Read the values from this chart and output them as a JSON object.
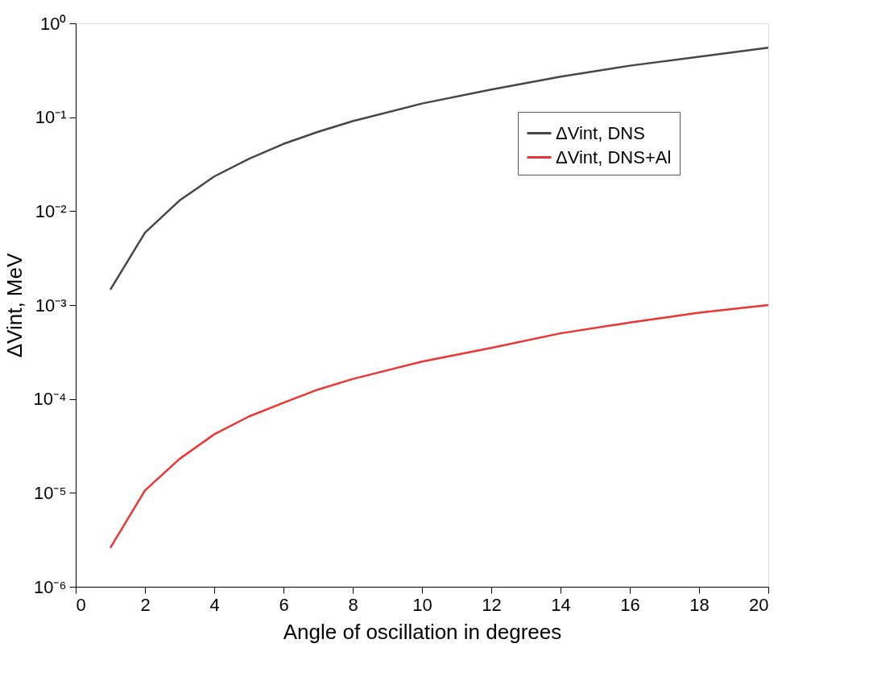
{
  "chart_data": {
    "type": "line",
    "xlabel": "Angle of oscillation in degrees",
    "ylabel": "ΔVint, MeV",
    "x": [
      1,
      2,
      3,
      4,
      5,
      6,
      7,
      8,
      10,
      12,
      14,
      16,
      18,
      20
    ],
    "series": [
      {
        "name": "ΔVint, DNS",
        "color": "#464646",
        "values": [
          0.00146,
          0.0059,
          0.013,
          0.0234,
          0.036,
          0.052,
          0.07,
          0.091,
          0.14,
          0.197,
          0.27,
          0.354,
          0.44,
          0.55
        ]
      },
      {
        "name": "ΔVint, DNS+Al",
        "color": "#ee3333",
        "values": [
          2.6e-06,
          1.06e-05,
          2.3e-05,
          4.2e-05,
          6.5e-05,
          9.1e-05,
          0.000126,
          0.000163,
          0.00025,
          0.00035,
          0.0005,
          0.00065,
          0.00083,
          0.001
        ]
      }
    ],
    "log": "y",
    "xlim": [
      0,
      20
    ],
    "xticks": [
      0,
      2,
      4,
      6,
      8,
      10,
      12,
      14,
      16,
      18,
      20
    ],
    "ylim": [
      1e-06,
      1
    ],
    "yticks": [
      {
        "value": 1e-06,
        "label": "10⁻⁶"
      },
      {
        "value": 1e-05,
        "label": "10⁻⁵"
      },
      {
        "value": 0.0001,
        "label": "10⁻⁴"
      },
      {
        "value": 0.001,
        "label": "10⁻³"
      },
      {
        "value": 0.01,
        "label": "10⁻²"
      },
      {
        "value": 0.1,
        "label": "10⁻¹"
      },
      {
        "value": 1,
        "label": "10⁰"
      }
    ],
    "grid": false,
    "legend": "top right",
    "marker": "none",
    "line_style": "solid"
  }
}
